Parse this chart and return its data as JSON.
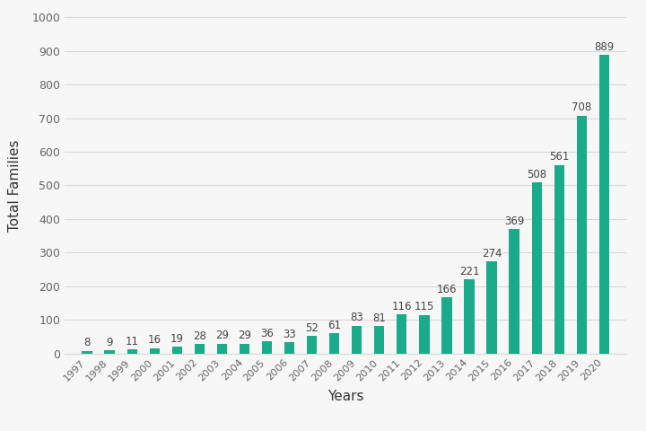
{
  "years": [
    1997,
    1998,
    1999,
    2000,
    2001,
    2002,
    2003,
    2004,
    2005,
    2006,
    2007,
    2008,
    2009,
    2010,
    2011,
    2012,
    2013,
    2014,
    2015,
    2016,
    2017,
    2018,
    2019,
    2020
  ],
  "values": [
    8,
    9,
    11,
    16,
    19,
    28,
    29,
    29,
    36,
    33,
    52,
    61,
    83,
    81,
    116,
    115,
    166,
    221,
    274,
    369,
    508,
    561,
    708,
    889
  ],
  "bar_color": "#1aab8a",
  "xlabel": "Years",
  "ylabel": "Total Families",
  "ylim": [
    0,
    1000
  ],
  "yticks": [
    0,
    100,
    200,
    300,
    400,
    500,
    600,
    700,
    800,
    900,
    1000
  ],
  "background_color": "#f7f7f7",
  "grid_color": "#d8d8d8",
  "label_fontsize": 8.5,
  "axis_label_fontsize": 11,
  "bar_width": 0.45
}
